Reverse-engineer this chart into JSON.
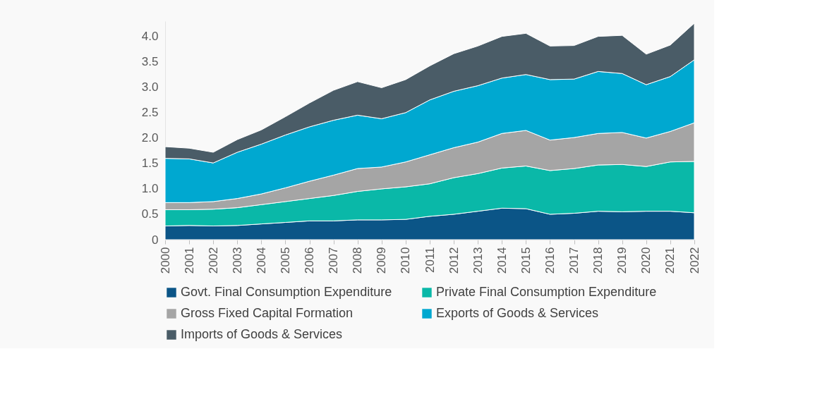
{
  "chart_data": {
    "type": "area",
    "stacked": true,
    "legend": "bottom",
    "grid": false,
    "categories": [
      "2000",
      "2001",
      "2002",
      "2003",
      "2004",
      "2005",
      "2006",
      "2007",
      "2008",
      "2009",
      "2010",
      "2011",
      "2012",
      "2013",
      "2014",
      "2015",
      "2016",
      "2017",
      "2018",
      "2019",
      "2020",
      "2021",
      "2022"
    ],
    "ylim": [
      0,
      4.3
    ],
    "yticks": [
      0,
      0.5,
      {
        "value": 1,
        "label": "1.0"
      },
      1.5,
      {
        "value": 2,
        "label": "2.0"
      },
      2.5,
      {
        "value": 3,
        "label": "3.0"
      },
      3.5,
      {
        "value": 4,
        "label": "4.0"
      }
    ],
    "series": [
      {
        "name": "Govt. Final Consumption Expenditure",
        "color": "#0b5587",
        "values": [
          0.27,
          0.28,
          0.27,
          0.28,
          0.31,
          0.34,
          0.37,
          0.37,
          0.39,
          0.39,
          0.4,
          0.46,
          0.5,
          0.56,
          0.62,
          0.61,
          0.5,
          0.52,
          0.56,
          0.55,
          0.56,
          0.56,
          0.53
        ]
      },
      {
        "name": "Private Final Consumption Expenditure",
        "color": "#0ab8a8",
        "values": [
          0.32,
          0.31,
          0.33,
          0.35,
          0.38,
          0.41,
          0.44,
          0.5,
          0.56,
          0.61,
          0.64,
          0.64,
          0.72,
          0.74,
          0.79,
          0.84,
          0.86,
          0.88,
          0.91,
          0.93,
          0.88,
          0.97,
          1.01
        ]
      },
      {
        "name": "Gross Fixed Capital Formation",
        "color": "#a5a5a5",
        "values": [
          0.14,
          0.14,
          0.15,
          0.18,
          0.21,
          0.27,
          0.34,
          0.4,
          0.45,
          0.43,
          0.49,
          0.57,
          0.59,
          0.62,
          0.68,
          0.7,
          0.6,
          0.61,
          0.62,
          0.63,
          0.56,
          0.6,
          0.76
        ]
      },
      {
        "name": "Exports of Goods & Services",
        "color": "#00a8d0",
        "values": [
          0.87,
          0.86,
          0.76,
          0.91,
          0.98,
          1.04,
          1.07,
          1.08,
          1.05,
          0.95,
          0.97,
          1.08,
          1.11,
          1.11,
          1.09,
          1.1,
          1.19,
          1.15,
          1.22,
          1.16,
          1.05,
          1.08,
          1.24
        ]
      },
      {
        "name": "Imports of Goods & Services",
        "color": "#4a5c67",
        "values": [
          0.23,
          0.21,
          0.21,
          0.25,
          0.28,
          0.36,
          0.47,
          0.59,
          0.66,
          0.61,
          0.65,
          0.67,
          0.74,
          0.78,
          0.82,
          0.81,
          0.66,
          0.66,
          0.69,
          0.75,
          0.6,
          0.62,
          0.72
        ]
      }
    ]
  }
}
